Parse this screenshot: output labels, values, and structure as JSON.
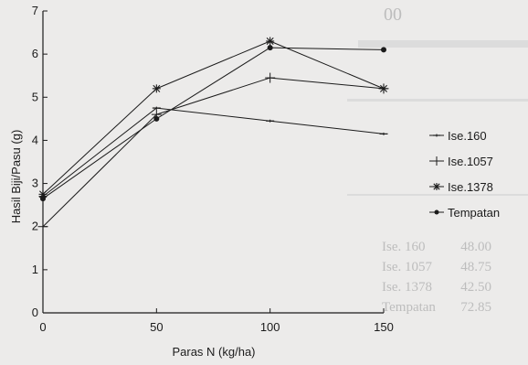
{
  "colors": {
    "background": "#ecebea",
    "ink": "#1b1b1b",
    "ghost": "#bdbdbd"
  },
  "chart_data": {
    "type": "line",
    "title": "",
    "xlabel": "Paras N (kg/ha)",
    "ylabel": "Hasil Biji/Pasu (g)",
    "x": [
      0,
      50,
      100,
      150
    ],
    "xlim": [
      0,
      150
    ],
    "ylim": [
      0,
      7
    ],
    "xticks": [
      "0",
      "50",
      "100",
      "150"
    ],
    "yticks": [
      "0",
      "1",
      "2",
      "3",
      "4",
      "5",
      "6",
      "7"
    ],
    "grid": false,
    "legend_position": "right",
    "series": [
      {
        "name": "Ise.160",
        "marker": "dash",
        "values": [
          2.7,
          4.75,
          4.45,
          4.15
        ]
      },
      {
        "name": "Ise.1057",
        "marker": "plus",
        "values": [
          2.0,
          4.6,
          5.45,
          5.2
        ]
      },
      {
        "name": "Ise.1378",
        "marker": "asterisk",
        "values": [
          2.75,
          5.2,
          6.3,
          5.2
        ]
      },
      {
        "name": "Tempatan",
        "marker": "dot",
        "values": [
          2.65,
          4.5,
          6.15,
          6.1
        ]
      }
    ]
  },
  "background_text": {
    "header_fragment": "00",
    "row_labels": [
      "Ise. 160",
      "Ise. 1057",
      "Ise. 1378",
      "Tempatan"
    ],
    "row_values": [
      "48.00",
      "48.75",
      "42.50",
      "72.85"
    ]
  }
}
